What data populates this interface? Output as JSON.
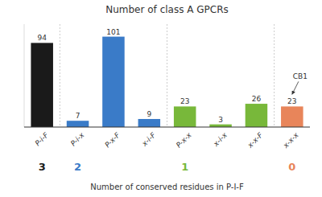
{
  "chart_data": {
    "type": "bar",
    "title": "Number of class A GPCRs",
    "x_label": "Number of conserved residues in P-I-F",
    "categories": [
      "P-i-F",
      "P-i-x",
      "P-x-F",
      "x-i-F",
      "P-x-x",
      "x-i-x",
      "x-x-F",
      "x-x-x"
    ],
    "values": [
      94,
      7,
      101,
      9,
      23,
      3,
      26,
      23
    ],
    "colors": [
      "#1a1a1a",
      "#3a7bc8",
      "#3a7bc8",
      "#3a7bc8",
      "#78b83a",
      "#78b83a",
      "#78b83a",
      "#e8855a"
    ],
    "ylim": [
      0,
      115
    ],
    "data_labels": true,
    "tick_labels": "x",
    "grid": false,
    "annotations": [
      {
        "text": "3",
        "x": "P-i-F",
        "color": "#1a1a1a"
      },
      {
        "text": "2",
        "x": "P-i-x",
        "color": "#3a7bc8"
      },
      {
        "text": "1",
        "x": "P-x-x",
        "color": "#78b83a"
      },
      {
        "text": "0",
        "x": "x-x-x",
        "color": "#e8855a"
      },
      {
        "text": "CB1",
        "x": "x-x-x",
        "arrow": true
      }
    ]
  }
}
